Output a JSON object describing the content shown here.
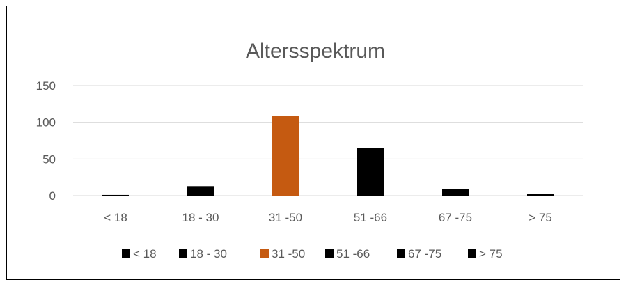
{
  "chart_data": {
    "type": "bar",
    "title": "Altersspektrum",
    "xlabel": "",
    "ylabel": "",
    "categories": [
      "< 18",
      "18 - 30",
      "31 -50",
      "51 -66",
      "67 -75",
      "> 75"
    ],
    "values": [
      1,
      13,
      109,
      65,
      9,
      2
    ],
    "colors": [
      "#000000",
      "#000000",
      "#c55a11",
      "#000000",
      "#000000",
      "#000000"
    ],
    "ylim": [
      0,
      150
    ],
    "yticks": [
      0,
      50,
      100,
      150
    ],
    "ytick_labels": [
      "0",
      "50",
      "100",
      "150"
    ],
    "grid": true,
    "legend": {
      "position": "bottom",
      "entries": [
        "< 18",
        "18 - 30",
        "31 -50",
        "51 -66",
        "67 -75",
        "> 75"
      ]
    }
  }
}
